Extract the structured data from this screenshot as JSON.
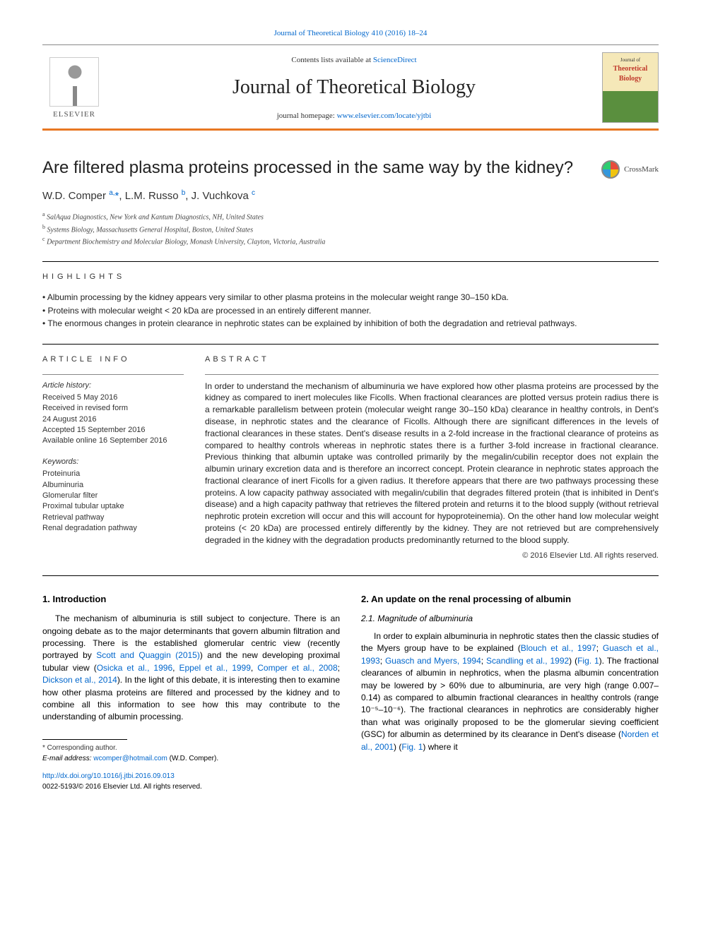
{
  "header": {
    "citation_link": "Journal of Theoretical Biology 410 (2016) 18–24",
    "contents_prefix": "Contents lists available at ",
    "contents_link": "ScienceDirect",
    "journal_title": "Journal of Theoretical Biology",
    "homepage_prefix": "journal homepage: ",
    "homepage_url": "www.elsevier.com/locate/yjtbi",
    "publisher": "ELSEVIER",
    "cover": {
      "line1": "Journal of",
      "line2": "Theoretical",
      "line3": "Biology"
    }
  },
  "article": {
    "title": "Are filtered plasma proteins processed in the same way by the kidney?",
    "crossmark": "CrossMark",
    "authors_html": "W.D. Comper <sup>a,</sup><span class='star'>*</span>, L.M. Russo <sup>b</sup>, J. Vuchkova <sup>c</sup>",
    "affiliations": [
      "a SalAqua Diagnostics, New York and Kantum Diagnostics, NH, United States",
      "b Systems Biology, Massachusetts General Hospital, Boston, United States",
      "c Department Biochemistry and Molecular Biology, Monash University, Clayton, Victoria, Australia"
    ]
  },
  "highlights": {
    "heading": "HIGHLIGHTS",
    "items": [
      "Albumin processing by the kidney appears very similar to other plasma proteins in the molecular weight range 30–150 kDa.",
      "Proteins with molecular weight < 20 kDa are processed in an entirely different manner.",
      "The enormous changes in protein clearance in nephrotic states can be explained by inhibition of both the degradation and retrieval pathways."
    ]
  },
  "info": {
    "heading": "ARTICLE INFO",
    "history_head": "Article history:",
    "history": [
      "Received 5 May 2016",
      "Received in revised form",
      "24 August 2016",
      "Accepted 15 September 2016",
      "Available online 16 September 2016"
    ],
    "keywords_head": "Keywords:",
    "keywords": [
      "Proteinuria",
      "Albuminuria",
      "Glomerular filter",
      "Proximal tubular uptake",
      "Retrieval pathway",
      "Renal degradation pathway"
    ]
  },
  "abstract": {
    "heading": "ABSTRACT",
    "text": "In order to understand the mechanism of albuminuria we have explored how other plasma proteins are processed by the kidney as compared to inert molecules like Ficolls. When fractional clearances are plotted versus protein radius there is a remarkable parallelism between protein (molecular weight range 30–150 kDa) clearance in healthy controls, in Dent's disease, in nephrotic states and the clearance of Ficolls. Although there are significant differences in the levels of fractional clearances in these states. Dent's disease results in a 2-fold increase in the fractional clearance of proteins as compared to healthy controls whereas in nephrotic states there is a further 3-fold increase in fractional clearance. Previous thinking that albumin uptake was controlled primarily by the megalin/cubilin receptor does not explain the albumin urinary excretion data and is therefore an incorrect concept. Protein clearance in nephrotic states approach the fractional clearance of inert Ficolls for a given radius. It therefore appears that there are two pathways processing these proteins. A low capacity pathway associated with megalin/cubilin that degrades filtered protein (that is inhibited in Dent's disease) and a high capacity pathway that retrieves the filtered protein and returns it to the blood supply (without retrieval nephrotic protein excretion will occur and this will account for hypoproteinemia). On the other hand low molecular weight proteins (< 20 kDa) are processed entirely differently by the kidney. They are not retrieved but are comprehensively degraded in the kidney with the degradation products predominantly returned to the blood supply.",
    "copyright": "© 2016 Elsevier Ltd. All rights reserved."
  },
  "body": {
    "sec1_head": "1.  Introduction",
    "sec1_p1_pre": "The mechanism of albuminuria is still subject to conjecture. There is an ongoing debate as to the major determinants that govern albumin filtration and processing. There is the established glomerular centric view (recently portrayed by ",
    "cite_scott": "Scott and Quaggin (2015)",
    "sec1_p1_mid1": ") and the new developing proximal tubular view (",
    "cite_osicka": "Osicka et al., 1996",
    "cite_eppel": "Eppel et al., 1999",
    "cite_comper": "Comper et al., 2008",
    "cite_dickson": "Dickson et al., 2014",
    "sec1_p1_post": "). In the light of this debate, it is interesting then to examine how other plasma proteins are filtered and processed by the kidney and to combine all this information to see how this may contribute to the understanding of albumin processing.",
    "sec2_head": "2.  An update on the renal processing of albumin",
    "sec2_1_head": "2.1.  Magnitude of albuminuria",
    "sec2_p1_pre": "In order to explain albuminuria in nephrotic states then the classic studies of the Myers group have to be explained (",
    "cite_blouch": "Blouch et al., 1997",
    "cite_guasch93": "Guasch et al., 1993",
    "cite_guasch94": "Guasch and Myers, 1994",
    "cite_scandling": "Scandling et al., 1992",
    "fig1a": "Fig. 1",
    "sec2_p1_mid1": "). The fractional clearances of albumin in nephrotics, when the plasma albumin concentration may be lowered by > 60% due to albuminuria, are very high (range 0.007–0.14) as compared to albumin fractional clearances in healthy controls (range 10⁻⁵–10⁻⁶). The fractional clearances in nephrotics are considerably higher than what was originally proposed to be the glomerular sieving coefficient (GSC) for albumin as determined by its clearance in Dent's disease (",
    "cite_norden": "Norden et al., 2001",
    "fig1b": "Fig. 1",
    "sec2_p1_post": ") where it"
  },
  "footer": {
    "corr_label": "* Corresponding author.",
    "email_label": "E-mail address: ",
    "email": "wcomper@hotmail.com",
    "email_suffix": " (W.D. Comper).",
    "doi": "http://dx.doi.org/10.1016/j.jtbi.2016.09.013",
    "issn_line": "0022-5193/© 2016 Elsevier Ltd. All rights reserved."
  },
  "colors": {
    "link": "#0066cc",
    "accent": "#e87722",
    "text": "#000000"
  }
}
